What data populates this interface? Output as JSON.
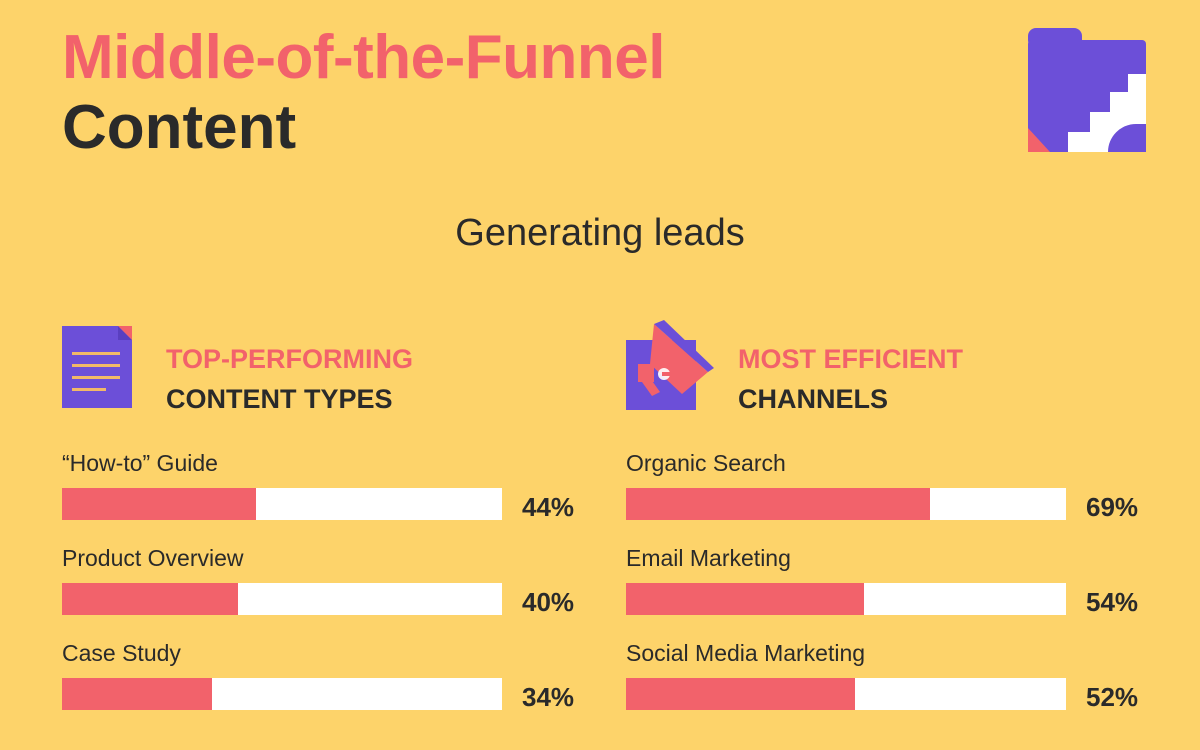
{
  "header": {
    "title_line1": "Middle-of-the-Funnel",
    "title_line2": "Content",
    "subtitle": "Generating leads",
    "icon": "folder-stairs-icon"
  },
  "colors": {
    "background": "#FDD36A",
    "accent": "#F2626B",
    "purple": "#6C4FD8",
    "bar_track": "#FFFFFF",
    "text": "#2A2A2A"
  },
  "chart_data": [
    {
      "type": "bar",
      "orientation": "horizontal",
      "title_line1": "TOP-PERFORMING",
      "title_line2": "CONTENT TYPES",
      "icon": "document-icon",
      "categories": [
        "“How-to” Guide",
        "Product Overview",
        "Case Study"
      ],
      "values": [
        44,
        40,
        34
      ],
      "labels": [
        "44%",
        "40%",
        "34%"
      ],
      "xlim": [
        0,
        100
      ]
    },
    {
      "type": "bar",
      "orientation": "horizontal",
      "title_line1": "MOST EFFICIENT",
      "title_line2": "CHANNELS",
      "icon": "megaphone-icon",
      "categories": [
        "Organic Search",
        "Email Marketing",
        "Social Media Marketing"
      ],
      "values": [
        69,
        54,
        52
      ],
      "labels": [
        "69%",
        "54%",
        "52%"
      ],
      "xlim": [
        0,
        100
      ]
    }
  ]
}
